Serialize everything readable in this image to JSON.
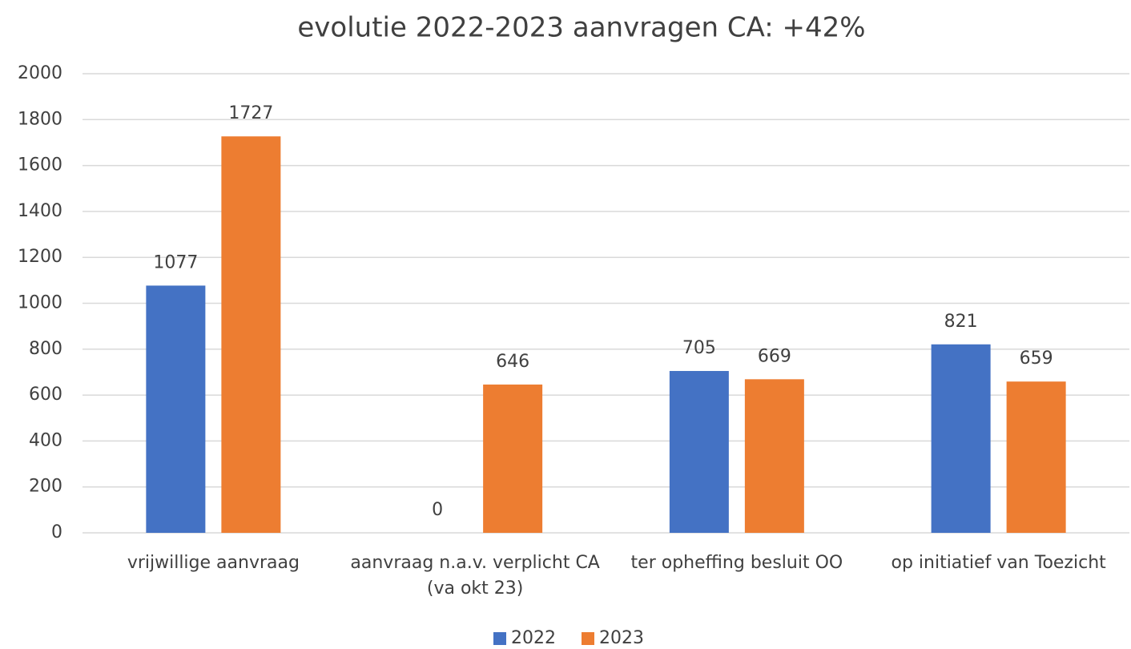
{
  "chart_data": {
    "type": "bar",
    "title": "evolutie 2022-2023 aanvragen CA: +42%",
    "categories": [
      "vrijwillige aanvraag",
      "aanvraag n.a.v. verplicht CA (va okt 23)",
      "ter opheffing besluit OO",
      "op initiatief van Toezicht"
    ],
    "series": [
      {
        "name": "2022",
        "color": "#4472c4",
        "values": [
          1077,
          0,
          705,
          821
        ]
      },
      {
        "name": "2023",
        "color": "#ed7d31",
        "values": [
          1727,
          646,
          669,
          659
        ]
      }
    ],
    "ylim": [
      0,
      2000
    ],
    "yticks": [
      0,
      200,
      400,
      600,
      800,
      1000,
      1200,
      1400,
      1600,
      1800,
      2000
    ],
    "grid": true,
    "legend": "bottom"
  }
}
